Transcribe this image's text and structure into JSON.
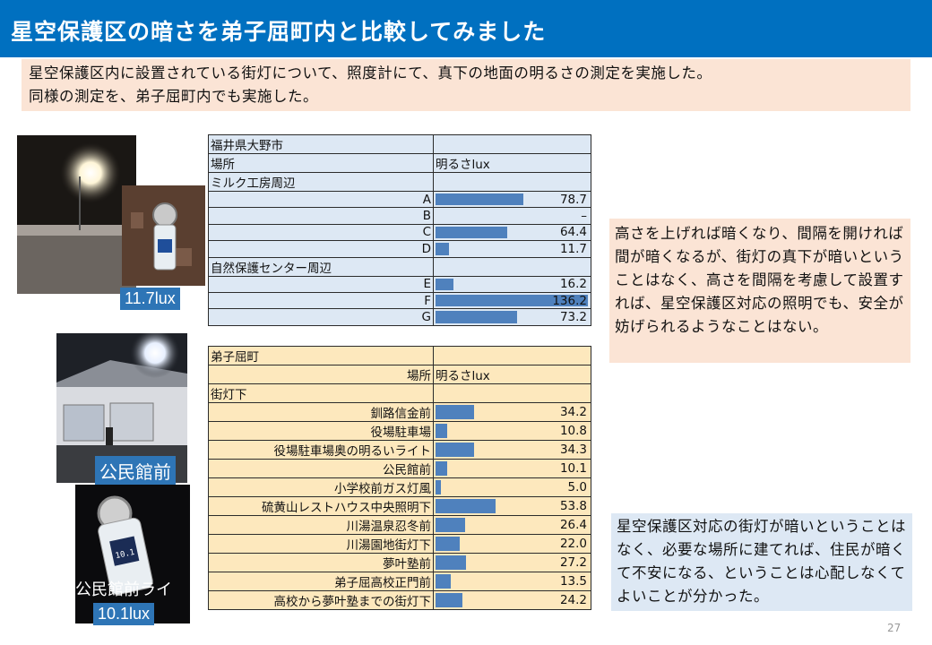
{
  "slide": {
    "title": "星空保護区の暗さを弟子屈町内と比較してみました",
    "intro": [
      "星空保護区内に設置されている街灯について、照度計にて、真下の地面の明るさの測定を実施した。",
      "同様の測定を、弟子屈町内でも実施した。"
    ],
    "page_number": "27"
  },
  "photos": {
    "label_1": "11.7lux",
    "label_2": "公民館前",
    "label_3": "公民館前ライ",
    "label_4": "10.1lux",
    "meter_reading": "10.1"
  },
  "table1": {
    "header": "福井県大野市",
    "col_place": "場所",
    "col_brightness": "明るさlux",
    "groups": [
      {
        "name": "ミルク工房周辺",
        "rows": [
          {
            "label": "A",
            "value": 78.7,
            "display": "78.7"
          },
          {
            "label": "B",
            "value": 0,
            "display": "–"
          },
          {
            "label": "C",
            "value": 64.4,
            "display": "64.4"
          },
          {
            "label": "D",
            "value": 11.7,
            "display": "11.7"
          }
        ]
      },
      {
        "name": "自然保護センター周辺",
        "rows": [
          {
            "label": "E",
            "value": 16.2,
            "display": "16.2"
          },
          {
            "label": "F",
            "value": 136.2,
            "display": "136.2"
          },
          {
            "label": "G",
            "value": 73.2,
            "display": "73.2"
          }
        ]
      }
    ]
  },
  "table2": {
    "header": "弟子屈町",
    "col_place": "場所",
    "col_brightness": "明るさlux",
    "group": "街灯下",
    "rows": [
      {
        "label": "釧路信金前",
        "value": 34.2,
        "display": "34.2"
      },
      {
        "label": "役場駐車場",
        "value": 10.8,
        "display": "10.8"
      },
      {
        "label": "役場駐車場奥の明るいライト",
        "value": 34.3,
        "display": "34.3"
      },
      {
        "label": "公民館前",
        "value": 10.1,
        "display": "10.1"
      },
      {
        "label": "小学校前ガス灯風",
        "value": 5.0,
        "display": "5.0"
      },
      {
        "label": "硫黄山レストハウス中央照明下",
        "value": 53.8,
        "display": "53.8"
      },
      {
        "label": "川湯温泉忍冬前",
        "value": 26.4,
        "display": "26.4"
      },
      {
        "label": "川湯園地街灯下",
        "value": 22.0,
        "display": "22.0"
      },
      {
        "label": "夢叶塾前",
        "value": 27.2,
        "display": "27.2"
      },
      {
        "label": "弟子屈高校正門前",
        "value": 13.5,
        "display": "13.5"
      },
      {
        "label": "高校から夢叶塾までの街灯下",
        "value": 24.2,
        "display": "24.2"
      }
    ]
  },
  "bar_max": 136.2,
  "notes": {
    "note1": "高さを上げれば暗くなり、間隔を開ければ間が暗くなるが、街灯の真下が暗いということはなく、高さを間隔を考慮して設置すれば、星空保護区対応の照明でも、安全が妨げられるようなことはない。",
    "note2": "星空保護区対応の街灯が暗いということはなく、必要な場所に建てれば、住民が暗くて不安になる、ということは心配しなくてよいことが分かった。"
  },
  "colors": {
    "title_bar": "#0070c0",
    "bar": "#4f81bd",
    "table1_bg": "#dde8f4",
    "table2_bg": "#fde8bd",
    "note1_bg": "#fbe4d5",
    "note2_bg": "#dde8f4"
  }
}
